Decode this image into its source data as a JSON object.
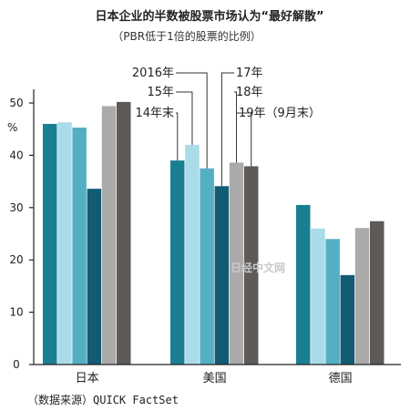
{
  "chart_data": {
    "type": "bar",
    "title": "日本企业的半数被股票市场认为“最好解散”",
    "subtitle": "（PBR低于1倍的股票的比例）",
    "ylabel": "%",
    "ylim": [
      0,
      55
    ],
    "yticks": [
      0,
      10,
      20,
      30,
      40,
      50
    ],
    "categories": [
      "日本",
      "美国",
      "德国"
    ],
    "series": [
      {
        "name": "14年末",
        "color": "#1b7f93",
        "values": [
          46,
          39,
          30.5
        ]
      },
      {
        "name": "15年",
        "color": "#a9dce8",
        "values": [
          46.3,
          42,
          26
        ]
      },
      {
        "name": "2016年",
        "color": "#55afc4",
        "values": [
          45.3,
          37.5,
          24
        ]
      },
      {
        "name": "17年",
        "color": "#125b73",
        "values": [
          33.6,
          34.1,
          17.1
        ]
      },
      {
        "name": "18年",
        "color": "#aaaaaa",
        "values": [
          49.4,
          38.6,
          26.1
        ]
      },
      {
        "name": "19年（9月末）",
        "color": "#5e5a57",
        "values": [
          50.2,
          37.9,
          27.4
        ]
      }
    ],
    "grid": false,
    "legend": "top-center",
    "source": "（数据来源）QUICK FactSet"
  },
  "watermark": "日经中文网"
}
